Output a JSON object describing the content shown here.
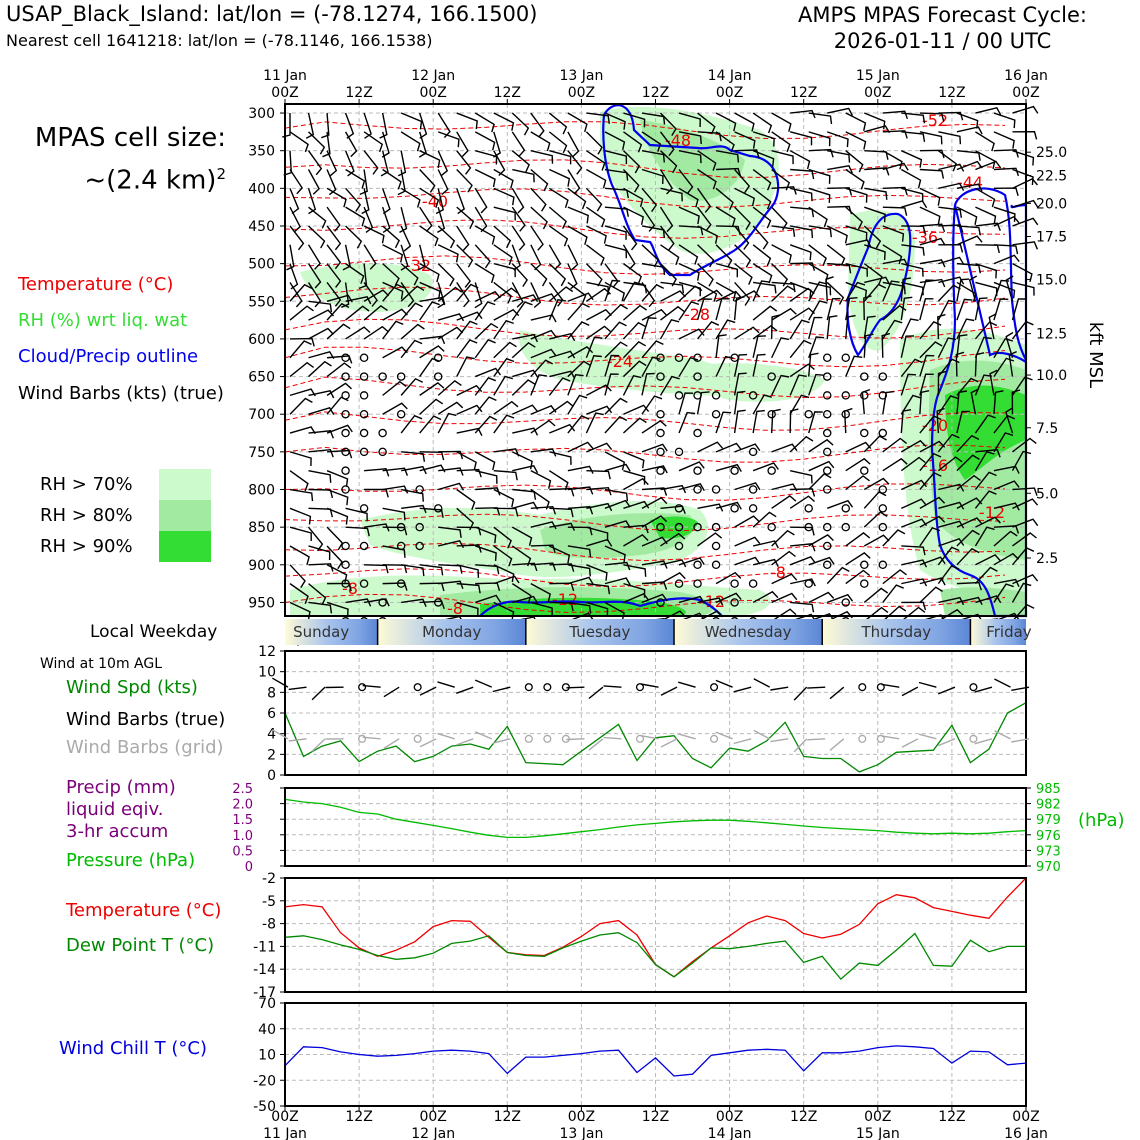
{
  "header": {
    "station": "USAP_Black_Island: lat/lon = (-78.1274, 166.1500)",
    "nearest": "Nearest cell 1641218: lat/lon = (-78.1146, 166.1538)",
    "cycle_line1": "AMPS MPAS Forecast Cycle:",
    "cycle_line2": "2026-01-11 / 00 UTC",
    "cell_size_line1": "MPAS cell size:",
    "cell_size_line2": "~(2.4 km)",
    "cell_size_sup": "2"
  },
  "legend": {
    "temperature": "Temperature (°C)",
    "rh": "RH (%) wrt liq. wat",
    "cloud": "Cloud/Precip outline",
    "wind": "Wind Barbs (kts) (true)",
    "rh70": "RH > 70%",
    "rh80": "RH > 80%",
    "rh90": "RH > 90%",
    "colors": {
      "rh70": "#ccfacc",
      "rh80": "#a2eaa2",
      "rh90": "#33dd33",
      "temp": "#ee0000",
      "cloud": "#0000ee"
    }
  },
  "labels": {
    "local_weekday": "Local Weekday",
    "wind_10m": "Wind at 10m AGL",
    "wind_spd": "Wind Spd (kts)",
    "wind_barbs_true": "Wind Barbs (true)",
    "wind_barbs_grid": "Wind Barbs (grid)",
    "precip1": "Precip (mm)",
    "precip2": "liquid eqiv.",
    "precip3": "3-hr accum",
    "pressure": "Pressure (hPa)",
    "hpa_unit": "(hPa)",
    "temperature": "Temperature (°C)",
    "dewpoint": "Dew Point T (°C)",
    "windchill": "Wind Chill T (°C)",
    "kft": "kft MSL"
  },
  "weekdays": [
    "Sunday",
    "Monday",
    "Tuesday",
    "Wednesday",
    "Thursday",
    "Friday"
  ],
  "chart_data": [
    {
      "type": "time-height",
      "name": "cross-section",
      "x_ticks": [
        "00Z",
        "12Z",
        "00Z",
        "12Z",
        "00Z",
        "12Z",
        "00Z",
        "12Z",
        "00Z",
        "12Z",
        "00Z"
      ],
      "x_dates": [
        "11 Jan",
        "12 Jan",
        "13 Jan",
        "14 Jan",
        "15 Jan",
        "16 Jan"
      ],
      "pressure_ticks": [
        "300",
        "350",
        "400",
        "450",
        "500",
        "550",
        "600",
        "650",
        "700",
        "750",
        "800",
        "850",
        "900",
        "950"
      ],
      "pressure_values": [
        300,
        350,
        400,
        450,
        500,
        550,
        600,
        650,
        700,
        750,
        800,
        850,
        900,
        950
      ],
      "ylim_hpa": [
        288,
        968
      ],
      "height_ticks": [
        "25.0",
        "22.5",
        "20.0",
        "17.5",
        "15.0",
        "12.5",
        "10.0",
        "7.5",
        "5.0",
        "2.5"
      ],
      "height_tick_hpa": [
        352,
        383,
        420,
        464,
        521,
        593,
        648,
        718,
        805,
        891
      ],
      "temp_contour_labels": [
        "-52",
        "-48",
        "-44",
        "-40",
        "-36",
        "-32",
        "-28",
        "-24",
        "-20",
        "-16",
        "-12",
        "-12",
        "-12",
        "-8",
        "-8",
        "-8"
      ],
      "temp_label_pos": [
        [
          110,
          307
        ],
        [
          64,
          342
        ],
        [
          116,
          411
        ],
        [
          24,
          420
        ],
        [
          108,
          475
        ],
        [
          20,
          503
        ],
        [
          67,
          580
        ],
        [
          54,
          646
        ],
        [
          110,
          738
        ],
        [
          110,
          778
        ],
        [
          120,
          831
        ],
        [
          46,
          953
        ],
        [
          70,
          953
        ],
        [
          16,
          940
        ],
        [
          80,
          920
        ],
        [
          28,
          955
        ]
      ]
    },
    {
      "type": "line",
      "name": "wind-speed",
      "ylabel": "Wind Spd (kts)",
      "ylim": [
        0,
        12
      ],
      "y_ticks": [
        "12",
        "10",
        "8",
        "6",
        "4",
        "2",
        "0"
      ],
      "x_hours": [
        0,
        3,
        6,
        9,
        12,
        15,
        18,
        21,
        24,
        27,
        30,
        33,
        36,
        39,
        42,
        45,
        48,
        51,
        54,
        57,
        60,
        63,
        66,
        69,
        72,
        75,
        78,
        81,
        84,
        87,
        90,
        93,
        96,
        99,
        102,
        105,
        108,
        111,
        114,
        117,
        120
      ],
      "values": [
        6.0,
        1.8,
        2.8,
        3.3,
        1.3,
        2.3,
        2.8,
        1.3,
        1.8,
        2.8,
        3.0,
        2.5,
        4.7,
        1.2,
        1.1,
        1.0,
        2.3,
        3.6,
        4.9,
        1.4,
        3.6,
        3.8,
        1.6,
        0.7,
        2.6,
        2.3,
        3.3,
        5.1,
        1.8,
        1.6,
        1.6,
        0.3,
        1.0,
        2.2,
        2.3,
        2.4,
        4.8,
        1.2,
        2.5,
        6.0,
        7.0
      ],
      "color": "#008800"
    },
    {
      "type": "line",
      "name": "pressure",
      "ylabel": "Pressure (hPa)",
      "ylim": [
        970,
        985
      ],
      "y_ticks_right": [
        "985",
        "982",
        "979",
        "976",
        "973",
        "970"
      ],
      "precip_ticks_left": [
        "2.5",
        "2.0",
        "1.5",
        "1.0",
        "0.5",
        "0"
      ],
      "precip_ylim": [
        0,
        2.5
      ],
      "x_hours": [
        0,
        3,
        6,
        9,
        12,
        15,
        18,
        21,
        24,
        27,
        30,
        33,
        36,
        39,
        42,
        45,
        48,
        51,
        54,
        57,
        60,
        63,
        66,
        69,
        72,
        75,
        78,
        81,
        84,
        87,
        90,
        93,
        96,
        99,
        102,
        105,
        108,
        111,
        114,
        117,
        120
      ],
      "values": [
        982.8,
        982.3,
        982.0,
        981.3,
        980.3,
        980.0,
        979.0,
        978.4,
        977.8,
        977.2,
        976.5,
        975.9,
        975.5,
        975.5,
        975.8,
        976.2,
        976.6,
        977.0,
        977.5,
        977.9,
        978.2,
        978.5,
        978.7,
        978.8,
        978.8,
        978.6,
        978.3,
        978.0,
        977.7,
        977.4,
        977.2,
        977.0,
        976.8,
        976.5,
        976.3,
        976.2,
        976.3,
        976.2,
        976.3,
        976.6,
        976.8
      ],
      "color": "#00bb00"
    },
    {
      "type": "line",
      "name": "temperature-dewpoint",
      "ylim": [
        -17,
        -2
      ],
      "y_ticks": [
        "-2",
        "-5",
        "-8",
        "-11",
        "-14",
        "-17"
      ],
      "x_hours": [
        0,
        3,
        6,
        9,
        12,
        15,
        18,
        21,
        24,
        27,
        30,
        33,
        36,
        39,
        42,
        45,
        48,
        51,
        54,
        57,
        60,
        63,
        66,
        69,
        72,
        75,
        78,
        81,
        84,
        87,
        90,
        93,
        96,
        99,
        102,
        105,
        108,
        111,
        114,
        117,
        120
      ],
      "series": [
        {
          "name": "Temperature (°C)",
          "color": "#ee0000",
          "values": [
            -5.8,
            -5.5,
            -5.8,
            -9.2,
            -11.2,
            -12.3,
            -11.5,
            -10.4,
            -8.4,
            -7.6,
            -7.7,
            -9.8,
            -11.8,
            -12.1,
            -12.2,
            -11.1,
            -9.7,
            -8.0,
            -7.6,
            -9.5,
            -13.4,
            -15.0,
            -13.0,
            -11.2,
            -9.6,
            -7.9,
            -7.0,
            -7.6,
            -9.3,
            -9.9,
            -9.4,
            -8.1,
            -5.4,
            -4.2,
            -4.6,
            -5.9,
            -6.4,
            -6.9,
            -7.3,
            -4.5,
            -2.0
          ]
        },
        {
          "name": "Dew Point T (°C)",
          "color": "#008800",
          "values": [
            -9.8,
            -9.6,
            -10.1,
            -10.8,
            -11.4,
            -12.2,
            -12.7,
            -12.5,
            -11.9,
            -10.6,
            -10.3,
            -9.6,
            -11.8,
            -12.2,
            -12.3,
            -11.2,
            -10.3,
            -9.5,
            -9.2,
            -10.5,
            -13.4,
            -15.0,
            -13.2,
            -11.2,
            -11.3,
            -11.0,
            -10.6,
            -10.3,
            -13.1,
            -12.3,
            -15.3,
            -13.2,
            -13.5,
            -11.5,
            -9.3,
            -13.5,
            -13.6,
            -10.2,
            -11.7,
            -11.0,
            -11.0
          ]
        }
      ]
    },
    {
      "type": "line",
      "name": "wind-chill",
      "ylabel": "Wind Chill T (°C)",
      "ylim": [
        -50,
        70
      ],
      "y_ticks": [
        "70",
        "40",
        "10",
        "-20",
        "-50"
      ],
      "x_hours": [
        0,
        3,
        6,
        9,
        12,
        15,
        18,
        21,
        24,
        27,
        30,
        33,
        36,
        39,
        42,
        45,
        48,
        51,
        54,
        57,
        60,
        63,
        66,
        69,
        72,
        75,
        78,
        81,
        84,
        87,
        90,
        93,
        96,
        99,
        102,
        105,
        108,
        111,
        114,
        117,
        120
      ],
      "values": [
        -3,
        19,
        18,
        13,
        10,
        8,
        9,
        11,
        14,
        15,
        14,
        11,
        -12,
        7,
        7,
        9,
        11,
        14,
        15,
        -11,
        6,
        -15,
        -13,
        9,
        12,
        15,
        16,
        15,
        -9,
        12,
        12,
        14,
        18,
        20,
        19,
        17,
        0,
        14,
        13,
        -2,
        0
      ],
      "color": "#0000dd"
    }
  ],
  "bottom_axis": {
    "ticks": [
      "00Z",
      "12Z",
      "00Z",
      "12Z",
      "00Z",
      "12Z",
      "00Z",
      "12Z",
      "00Z",
      "12Z",
      "00Z"
    ],
    "dates": [
      "11 Jan",
      "12 Jan",
      "13 Jan",
      "14 Jan",
      "15 Jan",
      "16 Jan"
    ]
  }
}
